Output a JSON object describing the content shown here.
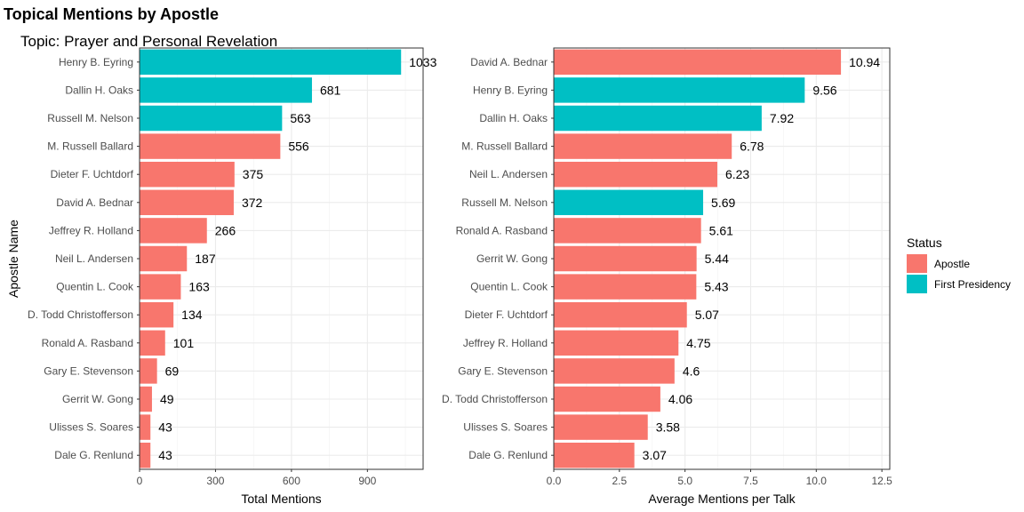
{
  "title": "Topical Mentions by Apostle",
  "subtitle": "Topic: Prayer and Personal Revelation",
  "colors": {
    "Apostle": "#F8766D",
    "First Presidency": "#00BFC4"
  },
  "legend": {
    "title": "Status",
    "items": [
      {
        "label": "Apostle",
        "color": "#F8766D"
      },
      {
        "label": "First Presidency",
        "color": "#00BFC4"
      }
    ]
  },
  "chart_data": [
    {
      "type": "bar",
      "orientation": "horizontal",
      "xlabel": "Total Mentions",
      "ylabel": "Apostle Name",
      "xlim": [
        0,
        1120
      ],
      "xticks": [
        0,
        300,
        600,
        900
      ],
      "grid": true,
      "categories": [
        "Henry B. Eyring",
        "Dallin H. Oaks",
        "Russell M. Nelson",
        "M. Russell Ballard",
        "Dieter F. Uchtdorf",
        "David A. Bednar",
        "Jeffrey R. Holland",
        "Neil L. Andersen",
        "Quentin L. Cook",
        "D. Todd Christofferson",
        "Ronald A. Rasband",
        "Gary E. Stevenson",
        "Gerrit W. Gong",
        "Ulisses S. Soares",
        "Dale G. Renlund"
      ],
      "values": [
        1033,
        681,
        563,
        556,
        375,
        372,
        266,
        187,
        163,
        134,
        101,
        69,
        49,
        43,
        43
      ],
      "labels": [
        "1033",
        "681",
        "563",
        "556",
        "375",
        "372",
        "266",
        "187",
        "163",
        "134",
        "101",
        "69",
        "49",
        "43",
        "43"
      ],
      "status": [
        "First Presidency",
        "First Presidency",
        "First Presidency",
        "Apostle",
        "Apostle",
        "Apostle",
        "Apostle",
        "Apostle",
        "Apostle",
        "Apostle",
        "Apostle",
        "Apostle",
        "Apostle",
        "Apostle",
        "Apostle"
      ]
    },
    {
      "type": "bar",
      "orientation": "horizontal",
      "xlabel": "Average Mentions per Talk",
      "ylabel": "",
      "xlim": [
        0,
        12.8
      ],
      "xticks": [
        0.0,
        2.5,
        5.0,
        7.5,
        10.0,
        12.5
      ],
      "xtick_labels": [
        "0.0",
        "2.5",
        "5.0",
        "7.5",
        "10.0",
        "12.5"
      ],
      "grid": true,
      "categories": [
        "David A. Bednar",
        "Henry B. Eyring",
        "Dallin H. Oaks",
        "M. Russell Ballard",
        "Neil L. Andersen",
        "Russell M. Nelson",
        "Ronald A. Rasband",
        "Gerrit W. Gong",
        "Quentin L. Cook",
        "Dieter F. Uchtdorf",
        "Jeffrey R. Holland",
        "Gary E. Stevenson",
        "D. Todd Christofferson",
        "Ulisses S. Soares",
        "Dale G. Renlund"
      ],
      "values": [
        10.94,
        9.56,
        7.92,
        6.78,
        6.23,
        5.69,
        5.61,
        5.44,
        5.43,
        5.07,
        4.75,
        4.6,
        4.06,
        3.58,
        3.07
      ],
      "labels": [
        "10.94",
        "9.56",
        "7.92",
        "6.78",
        "6.23",
        "5.69",
        "5.61",
        "5.44",
        "5.43",
        "5.07",
        "4.75",
        "4.6",
        "4.06",
        "3.58",
        "3.07"
      ],
      "status": [
        "Apostle",
        "First Presidency",
        "First Presidency",
        "Apostle",
        "Apostle",
        "First Presidency",
        "Apostle",
        "Apostle",
        "Apostle",
        "Apostle",
        "Apostle",
        "Apostle",
        "Apostle",
        "Apostle",
        "Apostle"
      ]
    }
  ]
}
